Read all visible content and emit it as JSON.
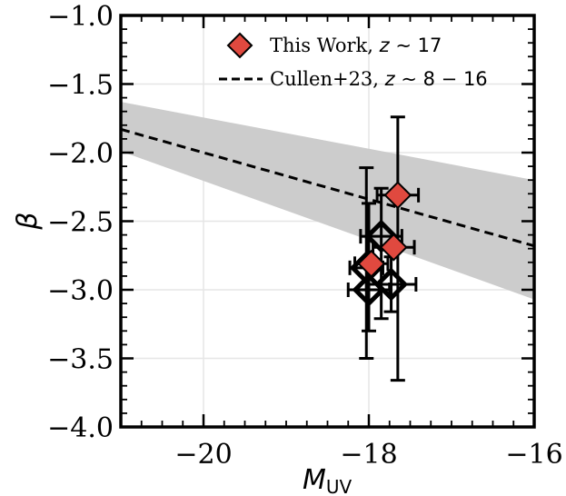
{
  "chart_data": {
    "type": "scatter",
    "xlabel_main": "M",
    "xlabel_sub": "UV",
    "ylabel": "β",
    "xlim": [
      -21,
      -16
    ],
    "ylim": [
      -4.0,
      -1.0
    ],
    "xticks": [
      -20,
      -18,
      -16
    ],
    "xtick_labels": [
      "−20",
      "−18",
      "−16"
    ],
    "yticks": [
      -1.0,
      -1.5,
      -2.0,
      -2.5,
      -3.0,
      -3.5,
      -4.0
    ],
    "ytick_labels": [
      "−1.0",
      "−1.5",
      "−2.0",
      "−2.5",
      "−3.0",
      "−3.5",
      "−4.0"
    ],
    "grid": true,
    "legend_position": "top-right",
    "legend": [
      {
        "prefix": "This Work, ",
        "math": "z",
        "tilde": " ∼ ",
        "value": "17",
        "marker": "diamond",
        "color": "#e0493f"
      },
      {
        "prefix": "Cullen+23, ",
        "math": "z",
        "tilde": " ∼ ",
        "value": "8 − 16",
        "marker": "dashed-line",
        "color": "#000000"
      }
    ],
    "relation": {
      "name": "Cullen+23",
      "line": [
        [
          -21,
          -1.83
        ],
        [
          -16,
          -2.68
        ]
      ],
      "band_upper": [
        [
          -21,
          -1.63
        ],
        [
          -16,
          -2.2
        ]
      ],
      "band_lower": [
        [
          -21,
          -1.99
        ],
        [
          -16,
          -3.07
        ]
      ],
      "band_color": "#cccccc"
    },
    "series": [
      {
        "name": "This Work",
        "marker": "filled-diamond",
        "color": "#e0493f",
        "points": [
          {
            "x": -17.65,
            "y": -2.31,
            "xerr": 0.25,
            "yerr_low": 1.35,
            "yerr_high": 0.57
          },
          {
            "x": -17.7,
            "y": -2.69,
            "xerr": 0.25,
            "yerr_low": 0.0,
            "yerr_high": 0.0
          },
          {
            "x": -17.97,
            "y": -2.81,
            "xerr": 0.2,
            "yerr_low": 0.0,
            "yerr_high": 0.0
          }
        ]
      },
      {
        "name": "",
        "marker": "open-diamond",
        "color": "#000000",
        "points": [
          {
            "x": -17.85,
            "y": -2.61,
            "xerr": 0.25,
            "yerr_low": 0.6,
            "yerr_high": 0.35
          },
          {
            "x": -18.03,
            "y": -2.84,
            "xerr": 0.2,
            "yerr_low": 0.66,
            "yerr_high": 0.73
          },
          {
            "x": -18.0,
            "y": -3.0,
            "xerr": 0.25,
            "yerr_low": 0.3,
            "yerr_high": 0.63
          },
          {
            "x": -17.73,
            "y": -2.96,
            "xerr": 0.3,
            "yerr_low": 0.2,
            "yerr_high": 0.2
          }
        ]
      }
    ]
  }
}
